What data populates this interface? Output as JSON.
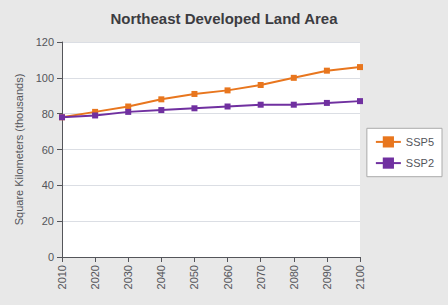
{
  "chart_data": {
    "type": "line",
    "title": "Northeast Developed Land Area",
    "ylabel": "Square Kilometers (thousands)",
    "x": [
      2010,
      2020,
      2030,
      2040,
      2050,
      2060,
      2070,
      2080,
      2090,
      2100
    ],
    "series": [
      {
        "name": "SSP5",
        "color": "#E8761E",
        "values": [
          78,
          81,
          84,
          88,
          91,
          93,
          96,
          100,
          104,
          106
        ]
      },
      {
        "name": "SSP2",
        "color": "#7030A0",
        "values": [
          78,
          79,
          81,
          82,
          83,
          84,
          85,
          85,
          86,
          87
        ]
      }
    ],
    "xlim": [
      2010,
      2100
    ],
    "xticks": [
      2010,
      2020,
      2030,
      2040,
      2050,
      2060,
      2070,
      2080,
      2090,
      2100
    ],
    "ylim": [
      0,
      120
    ],
    "yticks": [
      0,
      20,
      40,
      60,
      80,
      100,
      120
    ],
    "grid": true,
    "legend": "right",
    "marker": "square"
  }
}
